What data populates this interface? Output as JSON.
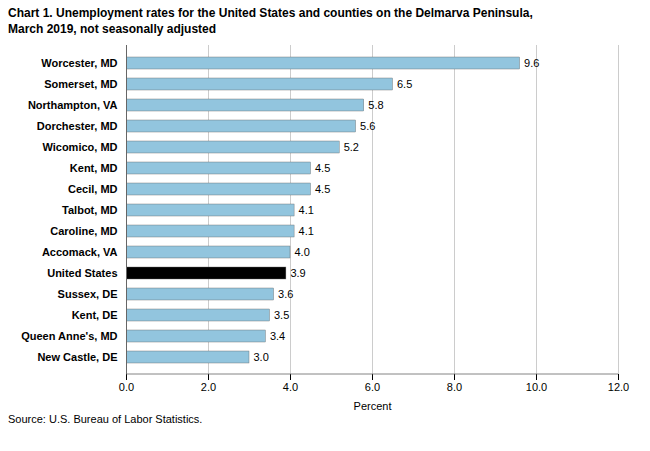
{
  "chart_data": {
    "type": "bar",
    "orientation": "horizontal",
    "title": "Chart 1. Unemployment rates for the United States and counties on the Delmarva Peninsula,",
    "subtitle": "March 2019, not seasonally adjusted",
    "categories": [
      "Worcester, MD",
      "Somerset, MD",
      "Northampton, VA",
      "Dorchester, MD",
      "Wicomico, MD",
      "Kent, MD",
      "Cecil, MD",
      "Talbot, MD",
      "Caroline, MD",
      "Accomack, VA",
      "United States",
      "Sussex, DE",
      "Kent, DE",
      "Queen Anne's, MD",
      "New Castle, DE"
    ],
    "values": [
      9.6,
      6.5,
      5.8,
      5.6,
      5.2,
      4.5,
      4.5,
      4.1,
      4.1,
      4.0,
      3.9,
      3.6,
      3.5,
      3.4,
      3.0
    ],
    "value_labels": [
      "9.6",
      "6.5",
      "5.8",
      "5.6",
      "5.2",
      "4.5",
      "4.5",
      "4.1",
      "4.1",
      "4.0",
      "3.9",
      "3.6",
      "3.5",
      "3.4",
      "3.0"
    ],
    "colors": [
      "#92C5DE",
      "#92C5DE",
      "#92C5DE",
      "#92C5DE",
      "#92C5DE",
      "#92C5DE",
      "#92C5DE",
      "#92C5DE",
      "#92C5DE",
      "#92C5DE",
      "#000000",
      "#92C5DE",
      "#92C5DE",
      "#92C5DE",
      "#92C5DE"
    ],
    "data_labels": true,
    "xlabel": "Percent",
    "xlim": [
      0,
      12.0
    ],
    "xticks": [
      {
        "value": 0,
        "label": "0.0"
      },
      {
        "value": 2,
        "label": "2.0"
      },
      {
        "value": 4,
        "label": "4.0"
      },
      {
        "value": 6,
        "label": "6.0"
      },
      {
        "value": 8,
        "label": "8.0"
      },
      {
        "value": 10,
        "label": "10.0"
      },
      {
        "value": 12,
        "label": "12.0"
      }
    ],
    "grid": true,
    "caption": "Source: U.S. Bureau of Labor Statistics."
  }
}
